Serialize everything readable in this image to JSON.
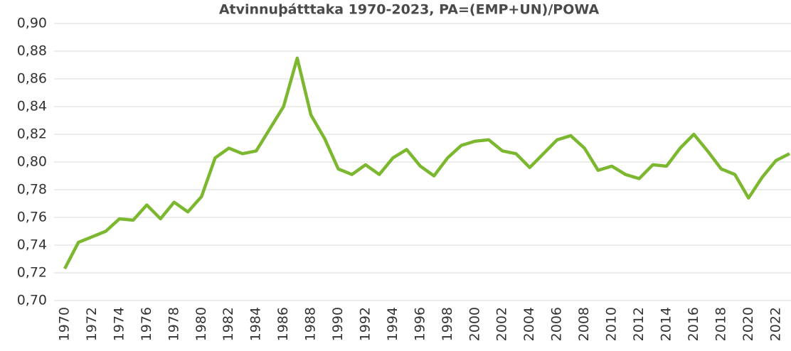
{
  "chart_data": {
    "type": "line",
    "title": "Atvinnuþátttaka 1970-2023, PA=(EMP+UN)/POWA",
    "x": [
      1970,
      1971,
      1972,
      1973,
      1974,
      1975,
      1976,
      1977,
      1978,
      1979,
      1980,
      1981,
      1982,
      1983,
      1984,
      1985,
      1986,
      1987,
      1988,
      1989,
      1990,
      1991,
      1992,
      1993,
      1994,
      1995,
      1996,
      1997,
      1998,
      1999,
      2000,
      2001,
      2002,
      2003,
      2004,
      2005,
      2006,
      2007,
      2008,
      2009,
      2010,
      2011,
      2012,
      2013,
      2014,
      2015,
      2016,
      2017,
      2018,
      2019,
      2020,
      2021,
      2022,
      2023
    ],
    "series": [
      {
        "color": "#7cb82f",
        "values": [
          0.723,
          0.742,
          0.746,
          0.75,
          0.759,
          0.758,
          0.769,
          0.759,
          0.771,
          0.764,
          0.775,
          0.803,
          0.81,
          0.806,
          0.808,
          0.824,
          0.84,
          0.875,
          0.834,
          0.817,
          0.795,
          0.791,
          0.798,
          0.791,
          0.803,
          0.809,
          0.797,
          0.79,
          0.803,
          0.812,
          0.815,
          0.816,
          0.808,
          0.806,
          0.796,
          0.806,
          0.816,
          0.819,
          0.81,
          0.794,
          0.797,
          0.791,
          0.788,
          0.798,
          0.797,
          0.81,
          0.82,
          0.808,
          0.795,
          0.791,
          0.774,
          0.789,
          0.801,
          0.806
        ]
      }
    ],
    "xlim": [
      1970,
      2023
    ],
    "xticks": [
      1970,
      1972,
      1974,
      1976,
      1978,
      1980,
      1982,
      1984,
      1986,
      1988,
      1990,
      1992,
      1994,
      1996,
      1998,
      2000,
      2002,
      2004,
      2006,
      2008,
      2010,
      2012,
      2014,
      2016,
      2018,
      2020,
      2022
    ],
    "ylim": [
      0.7,
      0.9
    ],
    "yticks": [
      {
        "value": 0.7,
        "label": "0,70"
      },
      {
        "value": 0.72,
        "label": "0,72"
      },
      {
        "value": 0.74,
        "label": "0,74"
      },
      {
        "value": 0.76,
        "label": "0,76"
      },
      {
        "value": 0.78,
        "label": "0,78"
      },
      {
        "value": 0.8,
        "label": "0,80"
      },
      {
        "value": 0.82,
        "label": "0,82"
      },
      {
        "value": 0.84,
        "label": "0,84"
      },
      {
        "value": 0.86,
        "label": "0,86"
      },
      {
        "value": 0.88,
        "label": "0,88"
      },
      {
        "value": 0.9,
        "label": "0,90"
      }
    ],
    "grid": true
  }
}
